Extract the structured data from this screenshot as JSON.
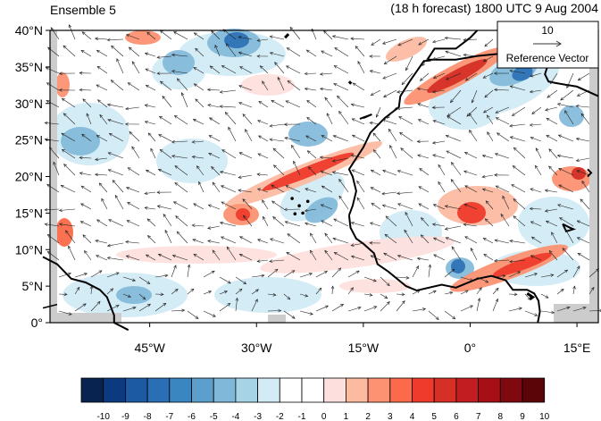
{
  "header": {
    "left_title": "Ensemble 5",
    "right_title": "(18 h forecast) 1800 UTC 9 Aug 2004"
  },
  "reference_vector": {
    "value": "10",
    "label": "Reference Vector"
  },
  "axes": {
    "lat_labels": [
      "40°N",
      "35°N",
      "30°N",
      "25°N",
      "20°N",
      "15°N",
      "10°N",
      "5°N",
      "0°"
    ],
    "lon_labels": [
      "45°W",
      "30°W",
      "15°W",
      "0°",
      "15°E"
    ],
    "lat_range": [
      0,
      40
    ],
    "lon_range": [
      -59,
      18
    ]
  },
  "colorbar": {
    "labels": [
      "-10",
      "-9",
      "-8",
      "-7",
      "-6",
      "-5",
      "-4",
      "-3",
      "-2",
      "-1",
      "0",
      "1",
      "2",
      "3",
      "4",
      "5",
      "6",
      "7",
      "8",
      "9",
      "10"
    ],
    "colors": [
      "#08234f",
      "#0b3a80",
      "#1c5ba3",
      "#2a6fb5",
      "#3a86c0",
      "#5c9fcc",
      "#7fb8d9",
      "#a7d3e6",
      "#d2ebf5",
      "#ffffff",
      "#ffffff",
      "#fde0dd",
      "#fcbba1",
      "#fc9272",
      "#fb6a4a",
      "#ef3b2c",
      "#d62f26",
      "#c21d20",
      "#a50f15",
      "#80080f",
      "#5c0508"
    ]
  },
  "colors": {
    "land_outline": "#000000",
    "arrow": "#222222",
    "missing": "#cccccc"
  }
}
